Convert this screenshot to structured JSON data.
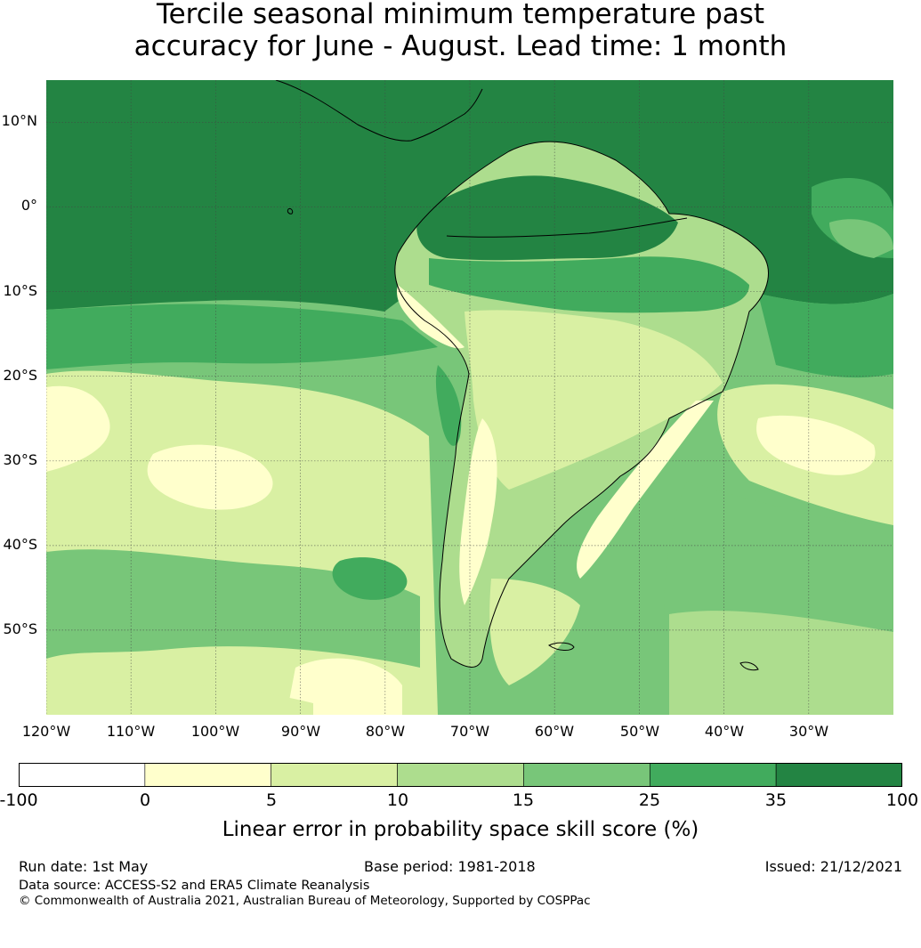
{
  "title_line1": "Tercile seasonal minimum temperature past",
  "title_line2": "accuracy for June - August. Lead time: 1 month",
  "map": {
    "lat_labels": [
      "10°N",
      "0°",
      "10°S",
      "20°S",
      "30°S",
      "40°S",
      "50°S"
    ],
    "lat_values": [
      10,
      0,
      -10,
      -20,
      -30,
      -40,
      -50
    ],
    "lon_labels": [
      "120°W",
      "110°W",
      "100°W",
      "90°W",
      "80°W",
      "70°W",
      "60°W",
      "50°W",
      "40°W",
      "30°W"
    ],
    "lon_values": [
      -120,
      -110,
      -100,
      -90,
      -80,
      -70,
      -60,
      -50,
      -40,
      -30
    ],
    "extent": {
      "lon_min": -120,
      "lon_max": -20,
      "lat_min": -60,
      "lat_max": 15
    },
    "background_color": "#7dc47a"
  },
  "colorbar": {
    "ticks": [
      "-100",
      "0",
      "5",
      "10",
      "15",
      "25",
      "35",
      "100"
    ],
    "colors": [
      "#ffffff",
      "#ffffcc",
      "#d9f0a3",
      "#addd8e",
      "#78c679",
      "#41ab5d",
      "#238443"
    ],
    "label": "Linear error in probability space skill score (%)"
  },
  "footer": {
    "run_date": "Run date: 1st May",
    "base_period": "Base period: 1981-2018",
    "issued": "Issued: 21/12/2021",
    "data_source": "Data source: ACCESS-S2 and ERA5 Climate Reanalysis",
    "copyright": "© Commonwealth of Australia 2021, Australian Bureau of Meteorology, Supported by COSPPac"
  }
}
